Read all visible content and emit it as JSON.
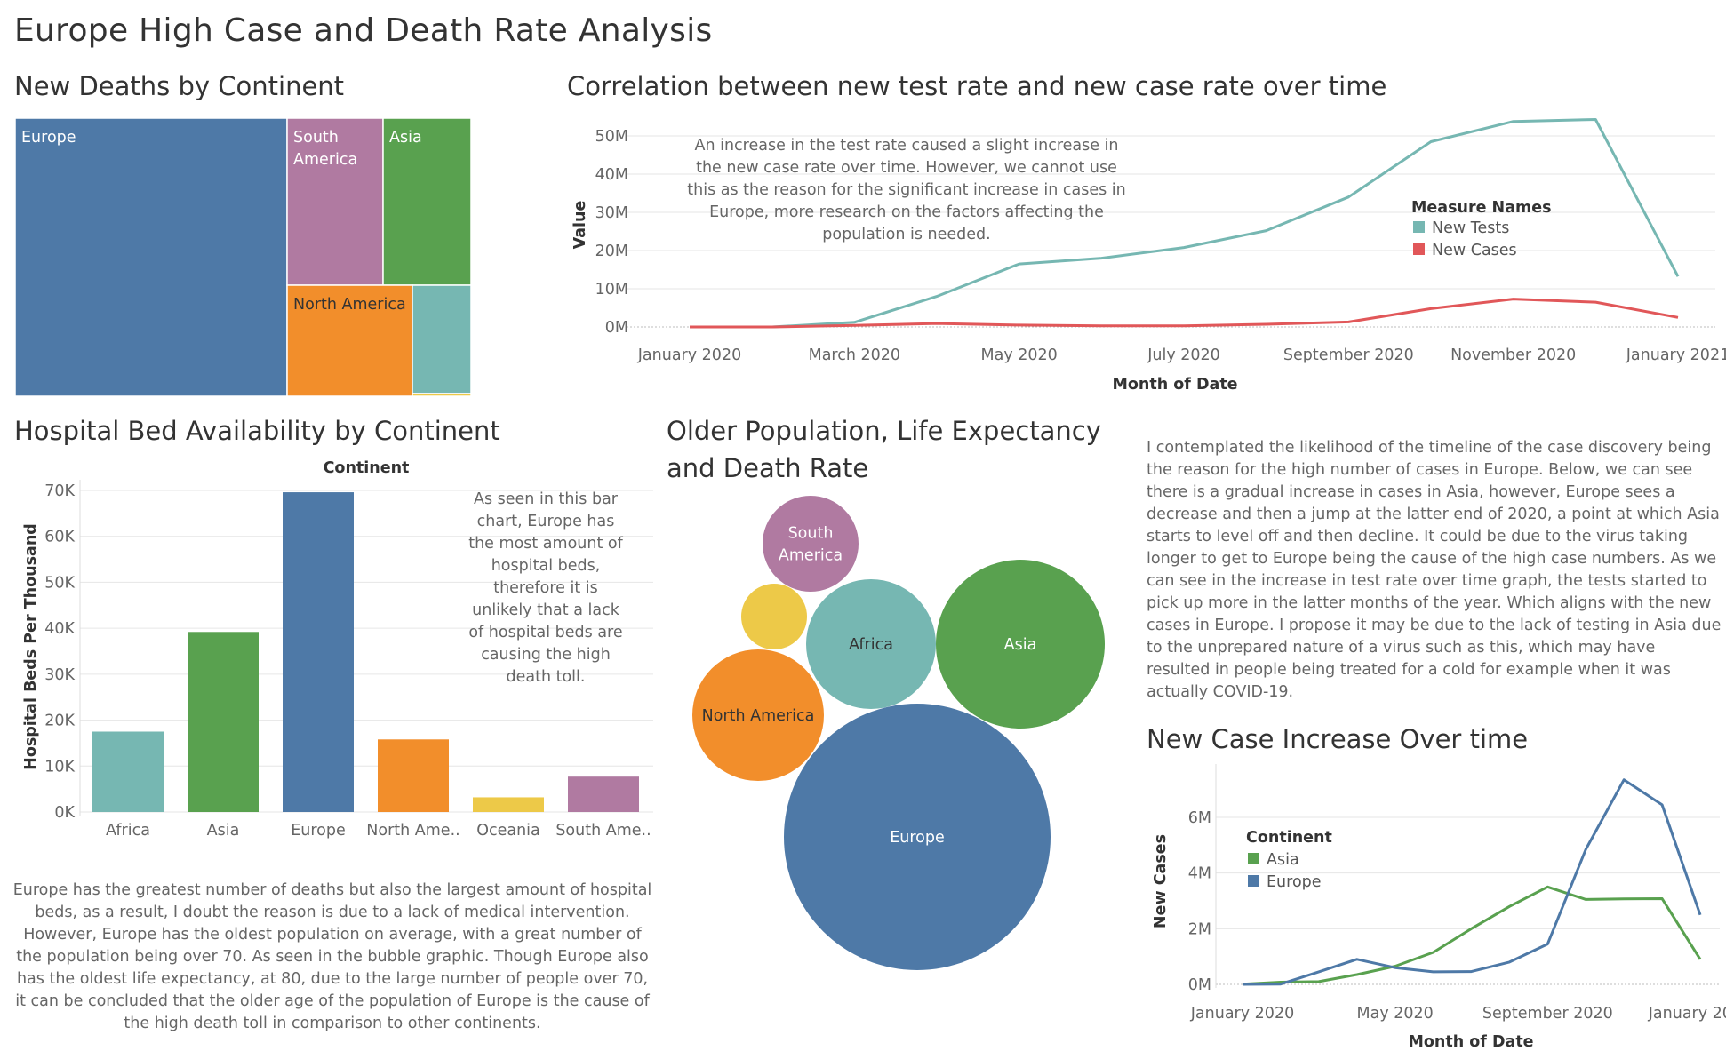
{
  "dashboard": {
    "title": "Europe High Case and Death Rate Analysis"
  },
  "sections": {
    "treemap_title": "New Deaths by Continent",
    "line_title": "Correlation between new test rate and new case rate over time",
    "bar_title": "Hospital Bed Availability by Continent",
    "bubble_title_line1": "Older Population, Life Expectancy",
    "bubble_title_line2": "and Death Rate",
    "asia_europe_title": "New Case Increase Over time"
  },
  "annotations": {
    "line_note": "An increase in the test rate caused a slight increase in the new case rate over time. However, we cannot use this as the reason for the significant increase in cases in Europe, more research on the factors affecting the population is needed.",
    "bar_note": "As seen in this bar chart, Europe has the most amount of hospital beds, therefore it is unlikely that a lack of hospital beds are causing the high death toll.",
    "bottom_left_note": "Europe has the greatest number of deaths but also the largest amount of hospital beds, as a result, I doubt the reason is due to a lack of medical intervention. However, Europe has the oldest population on average, with a great number of the population being over 70. As seen in the bubble graphic. Though Europe also has the oldest life expectancy, at 80, due to the large number of people over 70, it can be concluded that the older age of the population of Europe is the cause of the high death toll in comparison to other continents.",
    "right_note": "I contemplated the likelihood of the timeline of the case discovery being the reason for the high number of cases in Europe. Below, we can see there is a gradual increase in cases in Asia, however, Europe sees a decrease and then a jump at the latter end of 2020, a point at which Asia starts to level off and then decline. It could be due to the virus taking longer to get to Europe being the cause of the high case numbers. As we can see in the increase in test rate over time graph, the tests started to pick up more in the latter months of the year. Which aligns with the new cases in Europe. I propose it may be due to the lack of testing in Asia due to the unprepared nature of a virus such as this, which may have resulted in people being treated for a cold for example when it was actually COVID-19."
  },
  "colors": {
    "europe": "#4e79a7",
    "south_america": "#b07aa1",
    "asia": "#59a14f",
    "north_america": "#f28e2b",
    "africa": "#76b7b2",
    "oceania": "#edc948",
    "new_tests": "#76b7b2",
    "new_cases": "#e15759"
  },
  "chart_data": [
    {
      "id": "treemap",
      "type": "treemap",
      "title": "New Deaths by Continent",
      "items": [
        {
          "name": "Europe",
          "label": "Europe",
          "color_key": "europe"
        },
        {
          "name": "South America",
          "label_lines": [
            "South",
            "America"
          ],
          "color_key": "south_america"
        },
        {
          "name": "Asia",
          "label": "Asia",
          "color_key": "asia"
        },
        {
          "name": "North America",
          "label": "North America",
          "color_key": "north_america"
        },
        {
          "name": "Africa",
          "label": "",
          "color_key": "africa"
        },
        {
          "name": "Oceania",
          "label": "",
          "color_key": "oceania"
        }
      ]
    },
    {
      "id": "tests_cases_line",
      "type": "line",
      "title": "Correlation between new test rate and new case rate over time",
      "xlabel": "Month of Date",
      "ylabel": "Value",
      "x_ticks": [
        "January 2020",
        "March 2020",
        "May 2020",
        "July 2020",
        "September 2020",
        "November 2020",
        "January 2021"
      ],
      "y_ticks": [
        "0M",
        "10M",
        "20M",
        "30M",
        "40M",
        "50M"
      ],
      "ylim": [
        0,
        55000000
      ],
      "legend_title": "Measure Names",
      "x": [
        "2020-01",
        "2020-02",
        "2020-03",
        "2020-04",
        "2020-05",
        "2020-06",
        "2020-07",
        "2020-08",
        "2020-09",
        "2020-10",
        "2020-11",
        "2020-12",
        "2021-01"
      ],
      "series": [
        {
          "name": "New Tests",
          "color_key": "new_tests",
          "values": [
            0,
            0,
            1200000,
            8000000,
            16500000,
            18000000,
            20800000,
            25200000,
            34000000,
            48500000,
            53800000,
            54300000,
            13200000
          ]
        },
        {
          "name": "New Cases",
          "color_key": "new_cases",
          "values": [
            0,
            0,
            400000,
            900000,
            500000,
            300000,
            300000,
            700000,
            1300000,
            4800000,
            7300000,
            6500000,
            2500000
          ]
        }
      ]
    },
    {
      "id": "hospital_beds_bar",
      "type": "bar",
      "title": "Hospital Bed Availability by Continent",
      "header": "Continent",
      "ylabel": "Hospital Beds Per Thousand",
      "y_ticks": [
        "0K",
        "10K",
        "20K",
        "30K",
        "40K",
        "50K",
        "60K",
        "70K"
      ],
      "ylim": [
        0,
        70000
      ],
      "categories": [
        "Africa",
        "Asia",
        "Europe",
        "North Ame..",
        "Oceania",
        "South Ame.."
      ],
      "values": [
        17500,
        39200,
        69600,
        15800,
        3200,
        7700
      ],
      "color_keys": [
        "africa",
        "asia",
        "europe",
        "north_america",
        "oceania",
        "south_america"
      ]
    },
    {
      "id": "bubble",
      "type": "bubble",
      "title": "Older Population, Life Expectancy and Death Rate",
      "items": [
        {
          "name": "South America",
          "label_lines": [
            "South",
            "America"
          ],
          "color_key": "south_america",
          "label_color": "#ffffff"
        },
        {
          "name": "Oceania",
          "label_lines": [],
          "color_key": "oceania",
          "label_color": "#ffffff"
        },
        {
          "name": "Africa",
          "label_lines": [
            "Africa"
          ],
          "color_key": "africa",
          "label_color": "#333333"
        },
        {
          "name": "Asia",
          "label_lines": [
            "Asia"
          ],
          "color_key": "asia",
          "label_color": "#ffffff"
        },
        {
          "name": "North America",
          "label_lines": [
            "North America"
          ],
          "color_key": "north_america",
          "label_color": "#333333"
        },
        {
          "name": "Europe",
          "label_lines": [
            "Europe"
          ],
          "color_key": "europe",
          "label_color": "#ffffff"
        }
      ]
    },
    {
      "id": "asia_europe_line",
      "type": "line",
      "title": "New Case Increase Over time",
      "xlabel": "Month of Date",
      "ylabel": "New Cases",
      "x_ticks": [
        "January 2020",
        "May 2020",
        "September 2020",
        "January 2021"
      ],
      "y_ticks": [
        "0M",
        "2M",
        "4M",
        "6M"
      ],
      "ylim": [
        0,
        7500000
      ],
      "legend_title": "Continent",
      "x": [
        "2020-01",
        "2020-02",
        "2020-03",
        "2020-04",
        "2020-05",
        "2020-06",
        "2020-07",
        "2020-08",
        "2020-09",
        "2020-10",
        "2020-11",
        "2020-12",
        "2021-01"
      ],
      "series": [
        {
          "name": "Asia",
          "color_key": "asia",
          "values": [
            10000,
            80000,
            100000,
            350000,
            650000,
            1150000,
            2000000,
            2800000,
            3500000,
            3050000,
            3070000,
            3080000,
            900000
          ]
        },
        {
          "name": "Europe",
          "color_key": "europe",
          "values": [
            0,
            10000,
            450000,
            900000,
            600000,
            450000,
            460000,
            800000,
            1450000,
            4850000,
            7350000,
            6450000,
            2500000
          ]
        }
      ]
    }
  ]
}
